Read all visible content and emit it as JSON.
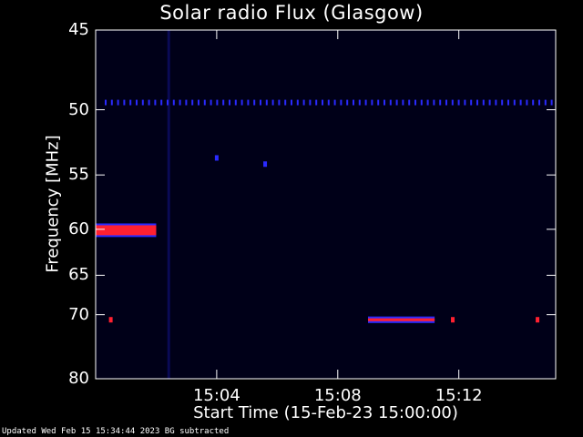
{
  "chart_data": {
    "type": "heatmap",
    "title": "Solar radio Flux (Glasgow)",
    "xlabel": "Start Time (15-Feb-23 15:00:00)",
    "ylabel": "Frequency [MHz]",
    "x_range_minutes": [
      0,
      15.2
    ],
    "ylim": [
      45,
      80
    ],
    "y_ticks": [
      "45",
      "50",
      "55",
      "60",
      "65",
      "70",
      "80"
    ],
    "x_ticks": [
      {
        "label": "15:04",
        "minutes": 4
      },
      {
        "label": "15:08",
        "minutes": 8
      },
      {
        "label": "15:12",
        "minutes": 12
      }
    ],
    "background_color": "#000018",
    "colors": {
      "low": "#0a0a55",
      "mid": "#2a2aff",
      "high": "#ff2030",
      "axes": "#ffffff"
    },
    "features": [
      {
        "kind": "band",
        "minutes": [
          0,
          2.0
        ],
        "mhz": [
          59.6,
          60.6
        ],
        "intensity": "high"
      },
      {
        "kind": "band",
        "minutes": [
          9.0,
          11.2
        ],
        "mhz": [
          70.5,
          70.9
        ],
        "intensity": "high"
      },
      {
        "kind": "spot",
        "minutes": 0.5,
        "mhz": 70.7,
        "intensity": "high"
      },
      {
        "kind": "spot",
        "minutes": 11.8,
        "mhz": 70.7,
        "intensity": "high"
      },
      {
        "kind": "spot",
        "minutes": 14.6,
        "mhz": 70.7,
        "intensity": "high"
      },
      {
        "kind": "spot",
        "minutes": 4.0,
        "mhz": 53.6,
        "intensity": "mid"
      },
      {
        "kind": "spot",
        "minutes": 5.6,
        "mhz": 54.1,
        "intensity": "mid"
      },
      {
        "kind": "vertical-line",
        "minutes": 2.4,
        "intensity": "mid"
      },
      {
        "kind": "dotted-line",
        "mhz": 49.5,
        "intensity": "mid"
      }
    ]
  },
  "footer": "Updated Wed Feb 15 15:34:44 2023   BG subtracted"
}
